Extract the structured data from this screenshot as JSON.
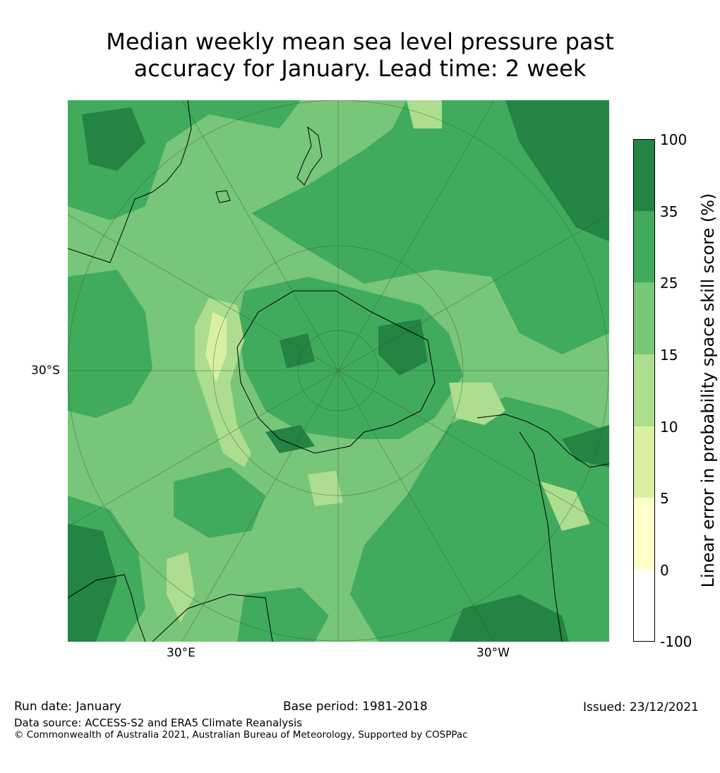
{
  "title_line1": "Median weekly mean sea level pressure past",
  "title_line2": "accuracy for January. Lead time: 2 week",
  "map": {
    "projection": "south-polar-stereographic",
    "gridline_labels": {
      "lat": "30°S",
      "lon_left": "30°E",
      "lon_right": "30°W"
    }
  },
  "colorbar": {
    "label": "Linear error in probability space skill score (%)",
    "ticks": [
      "100",
      "35",
      "25",
      "15",
      "10",
      "5",
      "0",
      "-100"
    ],
    "bins": [
      {
        "range": "35 to 100",
        "color": "#238443"
      },
      {
        "range": "25 to 35",
        "color": "#41ab5d"
      },
      {
        "range": "15 to 25",
        "color": "#78c679"
      },
      {
        "range": "10 to 15",
        "color": "#addd8e"
      },
      {
        "range": "5 to 10",
        "color": "#d9f0a3"
      },
      {
        "range": "0 to 5",
        "color": "#ffffcc"
      },
      {
        "range": "-100 to 0",
        "color": "#ffffff"
      }
    ]
  },
  "footer": {
    "run_date": "Run date: January",
    "base_period": "Base period: 1981-2018",
    "issued": "Issued: 23/12/2021",
    "data_source": "Data source: ACCESS-S2 and ERA5 Climate Reanalysis",
    "copyright": "© Commonwealth of Australia 2021, Australian Bureau of Meteorology, Supported by COSPPac"
  }
}
